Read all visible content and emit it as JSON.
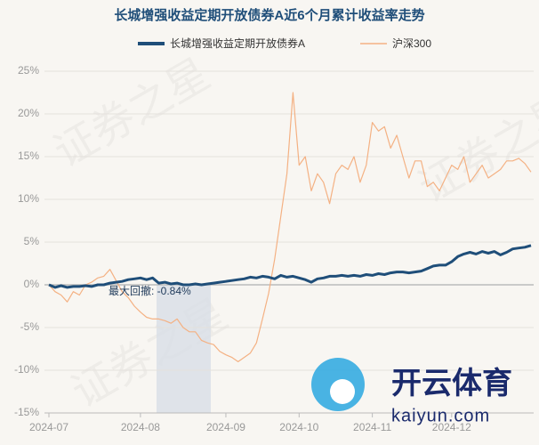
{
  "chart_data": {
    "type": "line",
    "title": "长城增强收益定期开放债券A近6个月累计收益率走势",
    "watermark": "证券之星",
    "logo_text": "开云体育",
    "logo_url": "kaiyun.com",
    "annotation": "最大回撤: -0.84%",
    "categories": [
      "2024-07",
      null,
      null,
      null,
      null,
      null,
      null,
      null,
      null,
      null,
      null,
      null,
      null,
      null,
      null,
      "2024-08",
      null,
      null,
      null,
      null,
      null,
      null,
      null,
      null,
      null,
      null,
      null,
      null,
      null,
      "2024-09",
      null,
      null,
      null,
      null,
      null,
      null,
      null,
      null,
      null,
      null,
      null,
      "2024-10",
      null,
      null,
      null,
      null,
      null,
      null,
      null,
      null,
      null,
      null,
      null,
      "2024-11",
      null,
      null,
      null,
      null,
      null,
      null,
      null,
      null,
      null,
      null,
      null,
      null,
      "2024-12",
      null,
      null,
      null,
      null,
      null,
      null,
      null,
      null,
      null,
      null,
      null,
      null,
      null
    ],
    "series": [
      {
        "name": "长城增强收益定期开放债券A",
        "color": "#1f4e79",
        "values": [
          0,
          -0.3,
          -0.1,
          -0.3,
          -0.2,
          -0.2,
          -0.1,
          -0.2,
          0,
          0,
          0.2,
          0.3,
          0.4,
          0.6,
          0.7,
          0.8,
          0.6,
          0.8,
          0.2,
          0.3,
          0.1,
          0.2,
          0,
          0,
          0.1,
          0,
          0.1,
          0.2,
          0.3,
          0.4,
          0.5,
          0.6,
          0.7,
          0.9,
          0.8,
          1,
          0.9,
          0.7,
          1.1,
          0.9,
          1,
          0.8,
          0.6,
          0.3,
          0.7,
          0.8,
          1,
          1,
          1.1,
          1,
          1.1,
          1,
          1.2,
          1.1,
          1.3,
          1.2,
          1.4,
          1.5,
          1.5,
          1.4,
          1.5,
          1.6,
          1.9,
          2.2,
          2.3,
          2.3,
          2.7,
          3.3,
          3.6,
          3.8,
          3.6,
          3.9,
          3.7,
          3.9,
          3.5,
          3.8,
          4.2,
          4.3,
          4.4,
          4.6
        ]
      },
      {
        "name": "沪深300",
        "color": "#f4b183",
        "values": [
          0,
          -0.8,
          -1.2,
          -2,
          -0.8,
          -1.2,
          0,
          0.3,
          0.8,
          1,
          1.8,
          0.5,
          -0.8,
          -1.5,
          -2.5,
          -3.2,
          -3.8,
          -4,
          -4,
          -4.2,
          -4.5,
          -4,
          -5,
          -5.5,
          -5.5,
          -6.5,
          -6.8,
          -7,
          -7.8,
          -8.2,
          -8.5,
          -9,
          -8.5,
          -8,
          -6.8,
          -4,
          -1,
          3,
          8,
          13,
          22.5,
          14,
          15,
          11,
          13,
          12,
          9.5,
          13,
          14,
          13.5,
          15,
          12,
          14,
          19,
          18,
          18.5,
          16,
          17.5,
          15,
          12.5,
          14.5,
          14.5,
          11.5,
          12,
          11,
          12.5,
          14,
          13.5,
          15,
          12,
          13,
          14,
          12.5,
          13,
          13.5,
          14.5,
          14.5,
          14.8,
          14.2,
          13.2
        ]
      }
    ],
    "ylim": [
      -15,
      25
    ],
    "yticks": [
      {
        "value": -15,
        "label": "-15%"
      },
      {
        "value": -10,
        "label": "-10%"
      },
      {
        "value": -5,
        "label": "-5%"
      },
      {
        "value": 0,
        "label": "0%"
      },
      {
        "value": 5,
        "label": "5%"
      },
      {
        "value": 10,
        "label": "10%"
      },
      {
        "value": 15,
        "label": "15%"
      },
      {
        "value": 20,
        "label": "20%"
      },
      {
        "value": 25,
        "label": "25%"
      }
    ],
    "grid": true
  }
}
